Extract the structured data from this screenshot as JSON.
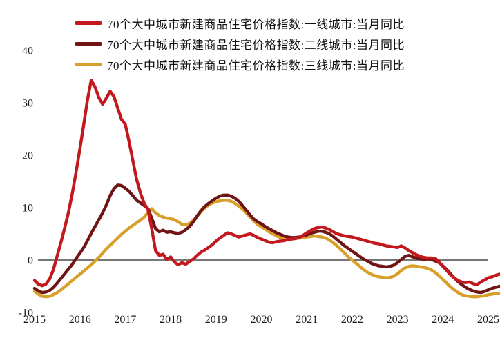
{
  "legend": {
    "items": [
      {
        "label": "70个大中城市新建商品住宅价格指数:一线城市:当月同比",
        "color": "#c2181e"
      },
      {
        "label": "70个大中城市新建商品住宅价格指数:二线城市:当月同比",
        "color": "#701416"
      },
      {
        "label": "70个大中城市新建商品住宅价格指数:三线城市:当月同比",
        "color": "#d8a02a"
      }
    ]
  },
  "axes": {
    "y_ticks": [
      "40",
      "30",
      "20",
      "10",
      "0",
      "-10"
    ],
    "x_ticks": [
      "2015",
      "2016",
      "2017",
      "2018",
      "2019",
      "2020",
      "2021",
      "2022",
      "2023",
      "2024",
      "2025"
    ]
  },
  "chart_data": {
    "type": "line",
    "title": "",
    "xlabel": "",
    "ylabel": "",
    "x_start": "2015-01",
    "x_end": "2025-04",
    "x_step": "1 month",
    "ylim": [
      -10,
      40
    ],
    "xlim": [
      2015,
      2025.3
    ],
    "grid": false,
    "zero_line": true,
    "legend_position": "top-left",
    "series": [
      {
        "name": "70个大中城市新建商品住宅价格指数:三线城市:当月同比",
        "color": "#d8a02a",
        "values": [
          -6.0,
          -6.5,
          -6.9,
          -7.0,
          -6.9,
          -6.6,
          -6.2,
          -5.7,
          -5.1,
          -4.5,
          -3.9,
          -3.3,
          -2.7,
          -2.1,
          -1.5,
          -0.9,
          -0.2,
          0.5,
          1.3,
          2.1,
          2.8,
          3.5,
          4.2,
          4.9,
          5.5,
          6.1,
          6.6,
          7.1,
          7.6,
          8.2,
          9.1,
          9.8,
          9.0,
          8.5,
          8.2,
          8.0,
          7.9,
          7.7,
          7.3,
          6.8,
          6.7,
          7.0,
          7.6,
          8.4,
          9.2,
          9.9,
          10.5,
          10.9,
          11.1,
          11.3,
          11.4,
          11.4,
          11.2,
          10.8,
          10.3,
          9.7,
          9.0,
          8.2,
          7.4,
          6.8,
          6.3,
          5.9,
          5.4,
          5.0,
          4.6,
          4.3,
          4.1,
          4.0,
          4.0,
          4.1,
          4.2,
          4.3,
          4.4,
          4.5,
          4.6,
          4.5,
          4.4,
          4.2,
          3.8,
          3.3,
          2.7,
          2.0,
          1.3,
          0.6,
          0.0,
          -0.6,
          -1.2,
          -1.8,
          -2.3,
          -2.7,
          -3.0,
          -3.2,
          -3.3,
          -3.4,
          -3.3,
          -3.1,
          -2.6,
          -2.0,
          -1.5,
          -1.2,
          -1.1,
          -1.2,
          -1.3,
          -1.4,
          -1.6,
          -1.9,
          -2.4,
          -3.0,
          -3.7,
          -4.4,
          -5.1,
          -5.7,
          -6.2,
          -6.6,
          -6.8,
          -6.9,
          -7.0,
          -7.0,
          -6.9,
          -6.8,
          -6.6,
          -6.5,
          -6.4,
          -6.3
        ]
      },
      {
        "name": "70个大中城市新建商品住宅价格指数:二线城市:当月同比",
        "color": "#701416",
        "values": [
          -5.4,
          -5.9,
          -6.2,
          -6.1,
          -5.8,
          -5.2,
          -4.4,
          -3.5,
          -2.6,
          -1.7,
          -0.8,
          0.3,
          1.3,
          2.4,
          3.7,
          5.1,
          6.4,
          7.7,
          9.0,
          10.5,
          12.3,
          13.6,
          14.3,
          14.2,
          13.7,
          13.1,
          12.3,
          11.4,
          10.9,
          10.4,
          9.8,
          8.0,
          6.0,
          5.4,
          5.7,
          5.3,
          5.4,
          5.2,
          5.1,
          5.3,
          5.8,
          6.4,
          7.3,
          8.4,
          9.4,
          10.2,
          10.8,
          11.3,
          11.8,
          12.2,
          12.4,
          12.4,
          12.2,
          11.8,
          11.2,
          10.4,
          9.5,
          8.6,
          7.8,
          7.3,
          6.9,
          6.4,
          6.0,
          5.6,
          5.2,
          4.9,
          4.6,
          4.4,
          4.3,
          4.3,
          4.4,
          4.6,
          4.8,
          5.1,
          5.3,
          5.5,
          5.5,
          5.3,
          5.0,
          4.5,
          3.9,
          3.3,
          2.7,
          2.2,
          1.7,
          1.2,
          0.7,
          0.2,
          -0.2,
          -0.6,
          -0.9,
          -1.1,
          -1.2,
          -1.3,
          -1.2,
          -1.0,
          -0.5,
          0.1,
          0.7,
          0.9,
          0.6,
          0.4,
          0.2,
          0.1,
          0.2,
          0.1,
          -0.2,
          -0.5,
          -1.1,
          -1.8,
          -2.6,
          -3.4,
          -4.1,
          -4.7,
          -5.2,
          -5.6,
          -5.9,
          -6.1,
          -6.2,
          -6.0,
          -5.7,
          -5.4,
          -5.2,
          -5.0
        ]
      },
      {
        "name": "70个大中城市新建商品住宅价格指数:一线城市:当月同比",
        "color": "#c2181e",
        "values": [
          -3.9,
          -4.6,
          -4.9,
          -4.6,
          -3.6,
          -1.8,
          0.8,
          3.4,
          6.2,
          9.2,
          12.8,
          16.8,
          21.2,
          25.8,
          30.6,
          34.3,
          33.0,
          31.0,
          29.7,
          30.9,
          32.2,
          31.2,
          29.0,
          26.8,
          25.9,
          22.6,
          19.0,
          15.4,
          12.8,
          10.8,
          9.6,
          6.0,
          1.8,
          0.9,
          1.1,
          0.1,
          0.6,
          -0.4,
          -0.9,
          -0.5,
          -0.8,
          -0.3,
          0.2,
          0.9,
          1.5,
          1.9,
          2.4,
          2.9,
          3.6,
          4.2,
          4.7,
          5.2,
          5.0,
          4.7,
          4.4,
          4.6,
          4.8,
          5.0,
          4.7,
          4.3,
          4.0,
          3.7,
          3.4,
          3.3,
          3.5,
          3.6,
          3.7,
          3.9,
          4.0,
          4.1,
          4.3,
          4.7,
          5.2,
          5.6,
          6.0,
          6.2,
          6.3,
          6.1,
          5.8,
          5.4,
          5.0,
          4.8,
          4.6,
          4.5,
          4.4,
          4.2,
          4.0,
          3.8,
          3.6,
          3.4,
          3.2,
          3.1,
          2.9,
          2.7,
          2.6,
          2.5,
          2.4,
          2.7,
          2.3,
          1.8,
          1.4,
          1.0,
          0.7,
          0.5,
          0.4,
          0.4,
          0.3,
          -0.4,
          -1.2,
          -2.0,
          -2.8,
          -3.4,
          -3.9,
          -4.2,
          -4.3,
          -4.2,
          -4.5,
          -4.7,
          -4.2,
          -3.8,
          -3.4,
          -3.2,
          -2.9,
          -2.7
        ]
      }
    ]
  }
}
